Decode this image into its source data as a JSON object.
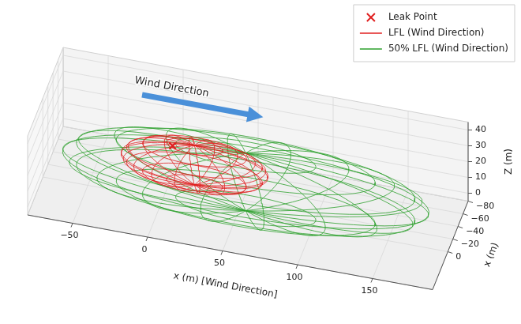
{
  "chart_data": {
    "type": "wireframe3d",
    "xlabel": "x (m) [Wind Direction]",
    "ylabel": "x (m)",
    "zlabel": "Z (m)",
    "annotations": [
      "Wind Direction"
    ],
    "xlim": [
      -80,
      190
    ],
    "xticks": [
      {
        "value": -50,
        "label": "−50"
      },
      0,
      50,
      100,
      150
    ],
    "ylim": [
      -80,
      60
    ],
    "yticks": [
      {
        "value": -80,
        "label": "−80"
      },
      {
        "value": -60,
        "label": "−60"
      },
      {
        "value": -40,
        "label": "−40"
      },
      {
        "value": -20,
        "label": "−20"
      },
      0
    ],
    "zlim": [
      -5,
      45
    ],
    "zticks": [
      0,
      10,
      20,
      30,
      40
    ],
    "grid": true,
    "legend": "upper right",
    "series": [
      {
        "name": "Leak Point",
        "type": "scatter",
        "marker": "x",
        "color": "#e02020",
        "x": [
          5
        ],
        "y": [
          0
        ],
        "z": [
          30
        ]
      },
      {
        "name": "LFL (Wind Direction)",
        "type": "ellipsoid",
        "color": "#e02020",
        "center": [
          20,
          0,
          20
        ],
        "semi_axes": [
          50,
          30,
          13
        ]
      },
      {
        "name": "50% LFL (Wind Direction)",
        "type": "ellipsoid",
        "color": "#2ca02c",
        "center": [
          55,
          0,
          15
        ],
        "semi_axes": [
          125,
          55,
          19
        ]
      }
    ]
  }
}
